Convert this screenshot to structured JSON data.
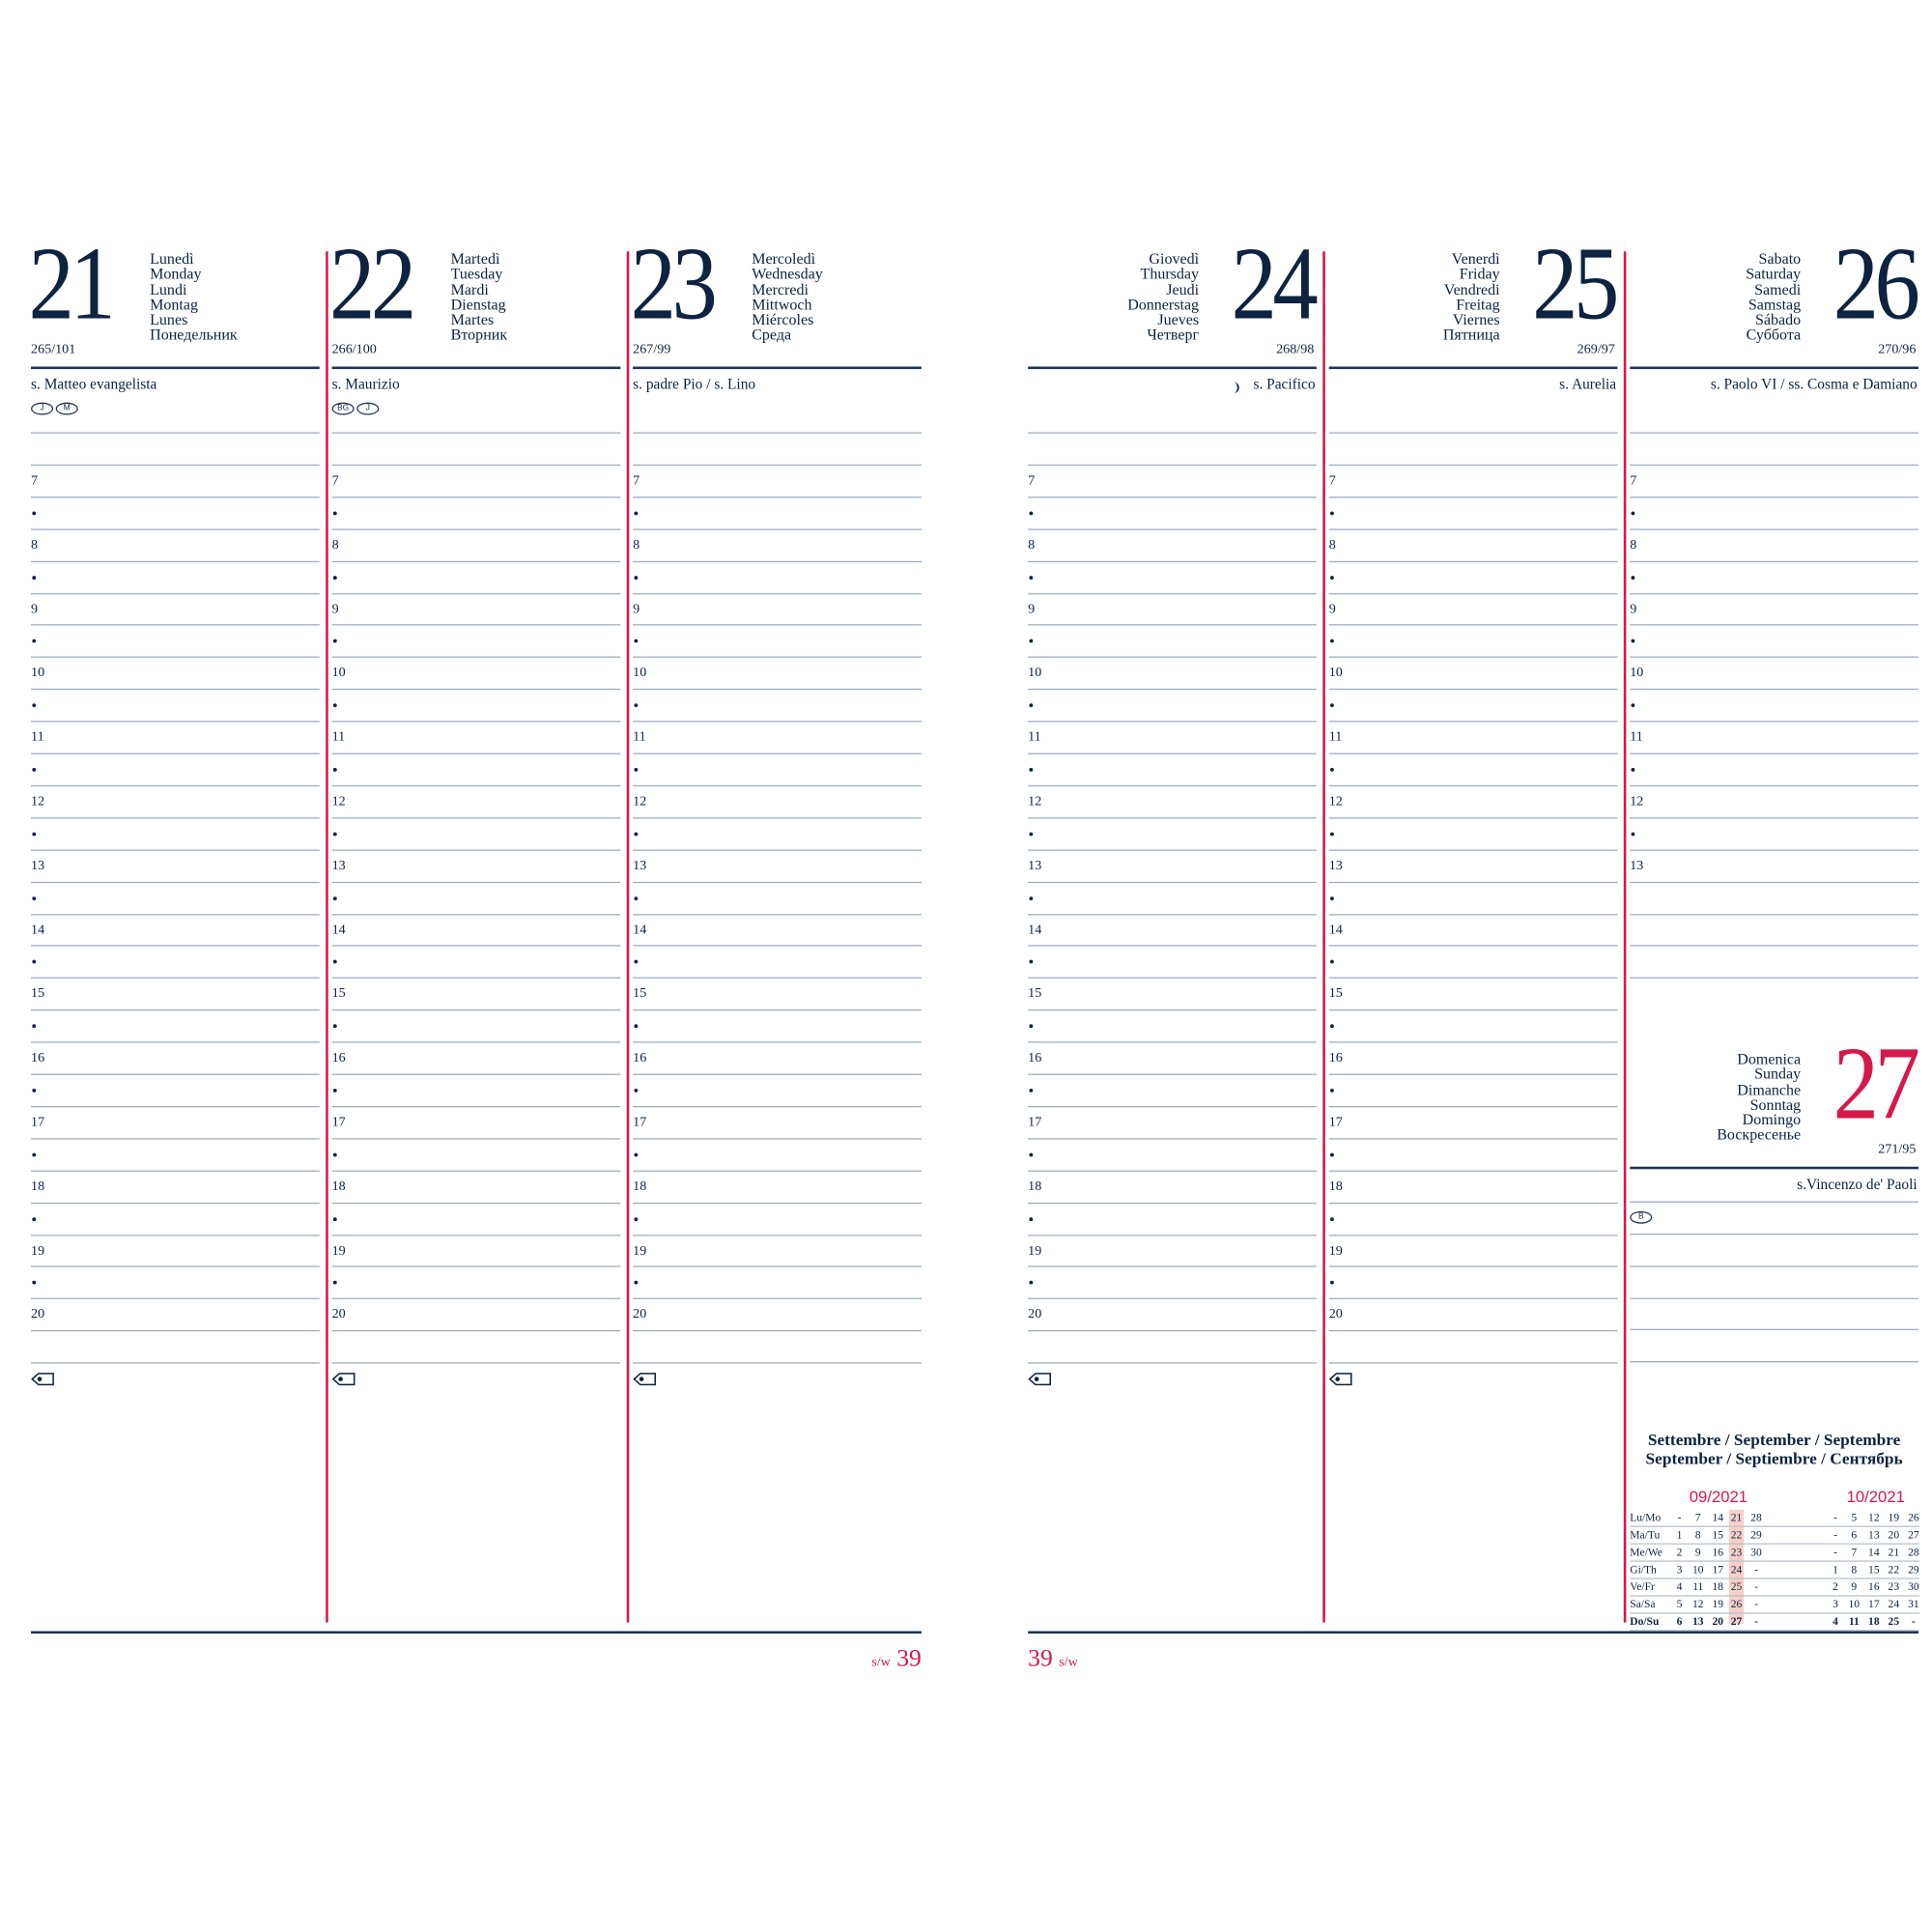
{
  "colors": {
    "navy": "#0d2340",
    "accent_red": "#d5194a",
    "rule": "#9fadbd",
    "highlight": "#f5cfc9"
  },
  "days": [
    {
      "number": "21",
      "names": [
        "Lunedì",
        "Monday",
        "Lundi",
        "Montag",
        "Lunes",
        "Понедельник"
      ],
      "doy": "265/101",
      "saint": "s. Matteo evangelista",
      "badges": [
        "J",
        "M"
      ]
    },
    {
      "number": "22",
      "names": [
        "Martedì",
        "Tuesday",
        "Mardi",
        "Dienstag",
        "Martes",
        "Вторник"
      ],
      "doy": "266/100",
      "saint": "s. Maurizio",
      "badges": [
        "BG",
        "J"
      ]
    },
    {
      "number": "23",
      "names": [
        "Mercoledì",
        "Wednesday",
        "Mercredi",
        "Mittwoch",
        "Miércoles",
        "Среда"
      ],
      "doy": "267/99",
      "saint": "s. padre Pio / s. Lino",
      "badges": []
    },
    {
      "number": "24",
      "names": [
        "Giovedì",
        "Thursday",
        "Jeudi",
        "Donnerstag",
        "Jueves",
        "Четверг"
      ],
      "doy": "268/98",
      "saint": "s. Pacifico",
      "badges": [],
      "moon_icon": "last-quarter-moon-icon"
    },
    {
      "number": "25",
      "names": [
        "Venerdì",
        "Friday",
        "Vendredi",
        "Freitag",
        "Viernes",
        "Пятница"
      ],
      "doy": "269/97",
      "saint": "s. Aurelia",
      "badges": []
    },
    {
      "number": "26",
      "names": [
        "Sabato",
        "Saturday",
        "Samedi",
        "Samstag",
        "Sábado",
        "Суббота"
      ],
      "doy": "270/96",
      "saint": "s. Paolo VI / ss. Cosma e Damiano",
      "badges": []
    }
  ],
  "sunday": {
    "number": "27",
    "names": [
      "Domenica",
      "Sunday",
      "Dimanche",
      "Sonntag",
      "Domingo",
      "Воскресенье"
    ],
    "doy": "271/95",
    "saint": "s.Vincenzo de' Paoli",
    "badges": [
      "B"
    ]
  },
  "hours": [
    "7",
    "8",
    "9",
    "10",
    "11",
    "12",
    "13",
    "14",
    "15",
    "16",
    "17",
    "18",
    "19",
    "20"
  ],
  "saturday_hours": [
    "7",
    "8",
    "9",
    "10",
    "11",
    "12",
    "13"
  ],
  "notes_icon": "tag-icon",
  "page_left": {
    "week_label": "s/w",
    "week": "39"
  },
  "page_right": {
    "week": "39",
    "week_label": "s/w"
  },
  "month_title": [
    "Settembre / September / Septembre",
    "September / Septiembre / Сентябрь"
  ],
  "mini_calendar": {
    "months": [
      "09/2021",
      "10/2021"
    ],
    "weekdays": [
      "Lu/Mo",
      "Ma/Tu",
      "Me/We",
      "Gi/Th",
      "Ve/Fr",
      "Sa/Sa",
      "Do/Su"
    ],
    "sep": [
      [
        "-",
        "7",
        "14",
        "21",
        "28"
      ],
      [
        "1",
        "8",
        "15",
        "22",
        "29"
      ],
      [
        "2",
        "9",
        "16",
        "23",
        "30"
      ],
      [
        "3",
        "10",
        "17",
        "24",
        "-"
      ],
      [
        "4",
        "11",
        "18",
        "25",
        "-"
      ],
      [
        "5",
        "12",
        "19",
        "26",
        "-"
      ],
      [
        "6",
        "13",
        "20",
        "27",
        "-"
      ]
    ],
    "oct": [
      [
        "-",
        "5",
        "12",
        "19",
        "26"
      ],
      [
        "-",
        "6",
        "13",
        "20",
        "27"
      ],
      [
        "-",
        "7",
        "14",
        "21",
        "28"
      ],
      [
        "1",
        "8",
        "15",
        "22",
        "29"
      ],
      [
        "2",
        "9",
        "16",
        "23",
        "30"
      ],
      [
        "3",
        "10",
        "17",
        "24",
        "31"
      ],
      [
        "4",
        "11",
        "18",
        "25",
        "-"
      ]
    ],
    "highlighted_week": "21-27"
  }
}
